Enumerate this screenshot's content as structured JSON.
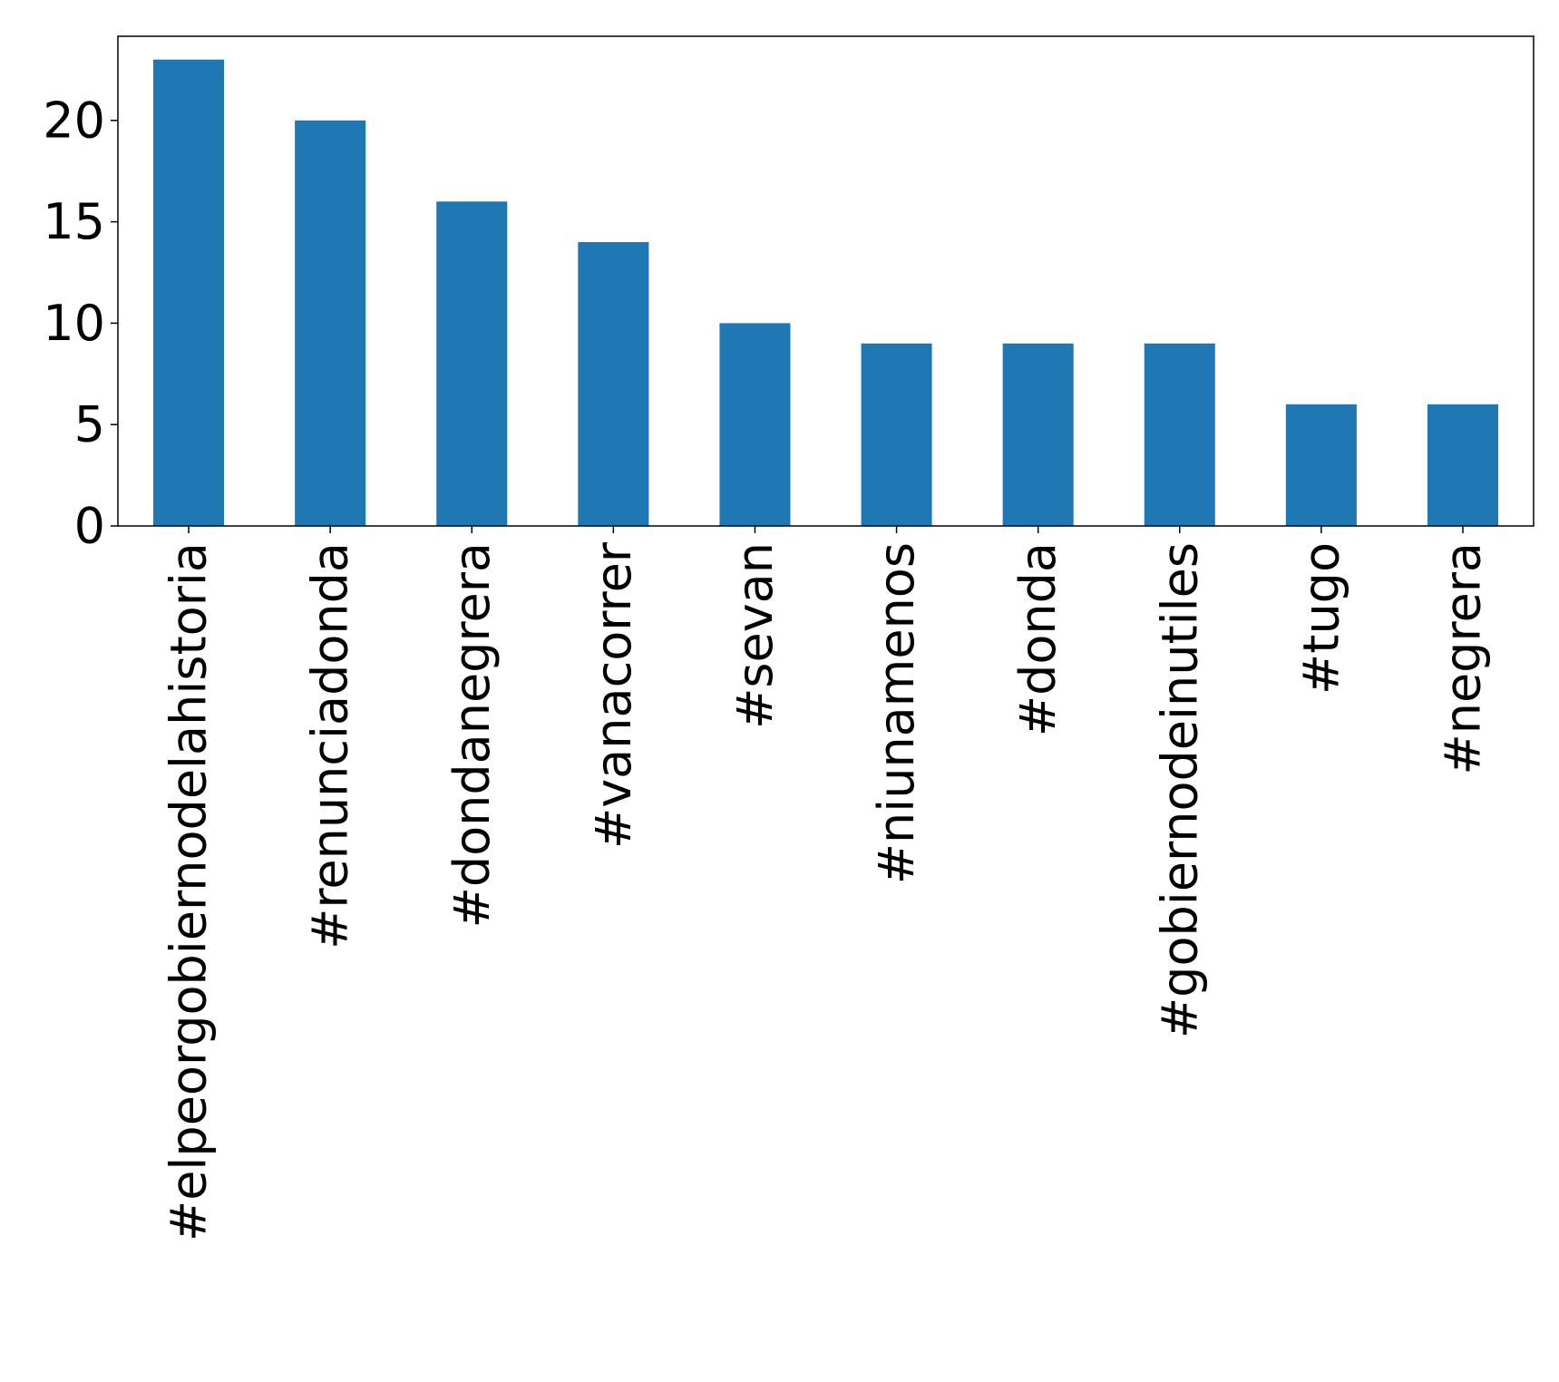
{
  "chart_data": {
    "type": "bar",
    "title": "",
    "xlabel": "",
    "ylabel": "",
    "categories": [
      "#elpeorgobiernodelahistoria",
      "#renunciadonda",
      "#dondanegrera",
      "#vanacorrer",
      "#sevan",
      "#niunamenos",
      "#donda",
      "#gobiernodeinutiles",
      "#tugo",
      "#negrera"
    ],
    "values": [
      23,
      20,
      16,
      14,
      10,
      9,
      9,
      9,
      6,
      6
    ],
    "ylim": [
      0,
      24.15
    ],
    "yticks": [
      0,
      5,
      10,
      15,
      20
    ],
    "grid": false,
    "legend": "none",
    "colors": {
      "bar": "#1f77b4",
      "axis": "#000000",
      "background": "#ffffff"
    }
  }
}
